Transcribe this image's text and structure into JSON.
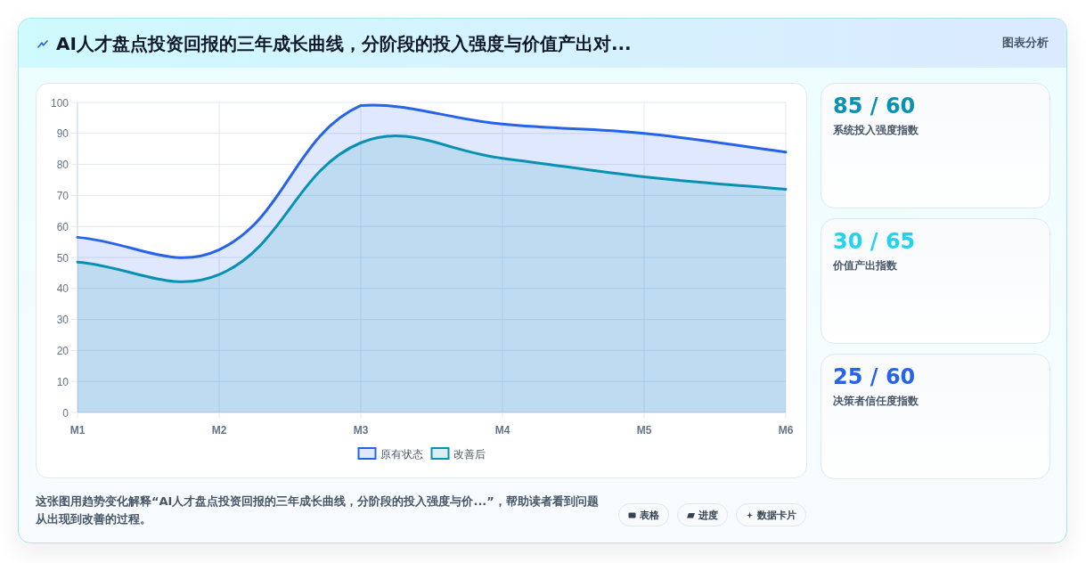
{
  "chart_data": [
    {
      "type": "area",
      "title": "AI人才盘点投资回报的三年成长曲线，分阶段的投入强度与价值产出对...",
      "categories": [
        "M1",
        "M2",
        "M3",
        "M4",
        "M5",
        "M6"
      ],
      "series": [
        {
          "name": "原有状态",
          "color": "#2563eb",
          "values": [
            56.5,
            52.5,
            99,
            93,
            90,
            84
          ]
        },
        {
          "name": "改善后",
          "color": "#0891b2",
          "values": [
            48.5,
            44.5,
            87,
            82,
            76,
            72
          ]
        }
      ],
      "ylim": [
        0,
        100
      ],
      "yticks": [
        0,
        10,
        20,
        30,
        40,
        50,
        60,
        70,
        80,
        90,
        100
      ],
      "grid": true,
      "legend": "bottom",
      "annotations": [
        "图表分析",
        "这张图用趋势变化解释“AI人才盘点投资回报的三年成长曲线，分阶段的投入强度与价...”，帮助读者看到问题从出现到改善的过程。",
        "表格",
        "进度",
        "数据卡片"
      ]
    },
    {
      "type": "other",
      "annotations": [
        "85 / 60",
        "系统投入强度指数",
        "30 / 65",
        "价值产出指数",
        "25 / 60",
        "决策者信任度指数"
      ]
    }
  ]
}
